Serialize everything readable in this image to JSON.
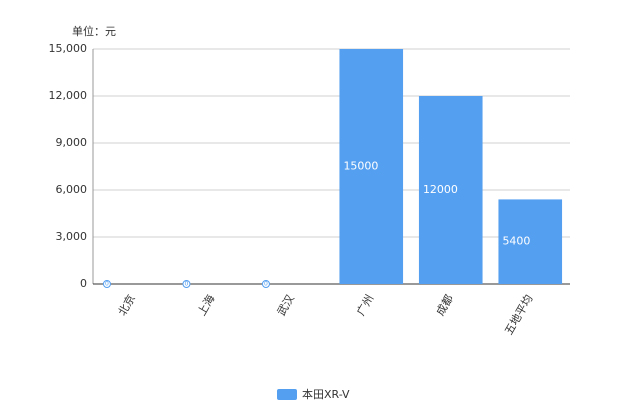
{
  "chart_data": {
    "type": "bar",
    "unit_label": "单位：元",
    "categories": [
      "北京",
      "上海",
      "武汉",
      "广州",
      "成都",
      "五地平均"
    ],
    "series": [
      {
        "name": "本田XR-V",
        "color": "#559ff0",
        "values": [
          0,
          0,
          0,
          15000,
          12000,
          5400
        ]
      }
    ],
    "ylim": [
      0,
      15000
    ],
    "yticks": [
      0,
      {
        "value": 3000,
        "label": "3,000"
      },
      {
        "value": 6000,
        "label": "6,000"
      },
      {
        "value": 9000,
        "label": "9,000"
      },
      {
        "value": 12000,
        "label": "12,000"
      },
      {
        "value": 15000,
        "label": "15,000"
      }
    ],
    "grid": true,
    "legend": "bottom"
  }
}
